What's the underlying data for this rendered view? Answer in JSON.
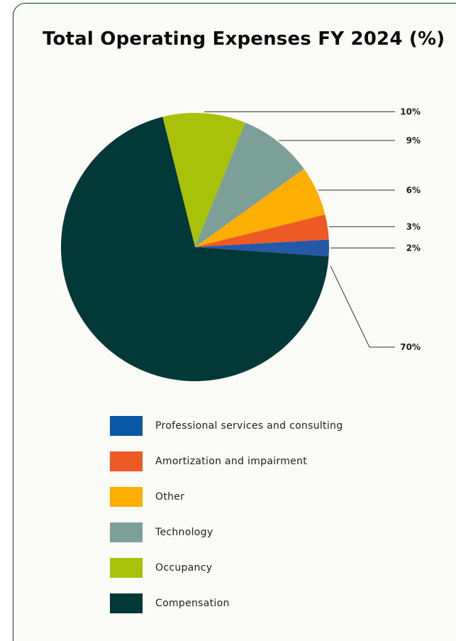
{
  "chart_data": {
    "type": "pie",
    "title": "Total Operating Expenses FY 2024 (%)",
    "slices": [
      {
        "name": "Occupancy",
        "value": 10,
        "label": "10%",
        "color": "#a8c20a"
      },
      {
        "name": "Technology",
        "value": 9,
        "label": "9%",
        "color": "#7c9f97"
      },
      {
        "name": "Other",
        "value": 6,
        "label": "6%",
        "color": "#fdae00"
      },
      {
        "name": "Amortization and impairment",
        "value": 3,
        "label": "3%",
        "color": "#ee5a24"
      },
      {
        "name": "Professional services and consulting",
        "value": 2,
        "label": "2%",
        "color": "#2558a8"
      },
      {
        "name": "Compensation",
        "value": 70,
        "label": "70%",
        "color": "#023837"
      }
    ],
    "legend": [
      {
        "name": "Professional services and consulting",
        "color": "#0a57a6"
      },
      {
        "name": "Amortization and impairment",
        "color": "#ee5a24"
      },
      {
        "name": "Other",
        "color": "#fdae00"
      },
      {
        "name": "Technology",
        "color": "#7c9f97"
      },
      {
        "name": "Occupancy",
        "color": "#a8c20a"
      },
      {
        "name": "Compensation",
        "color": "#023837"
      }
    ],
    "legend_placement": "bottom",
    "grid": false
  }
}
